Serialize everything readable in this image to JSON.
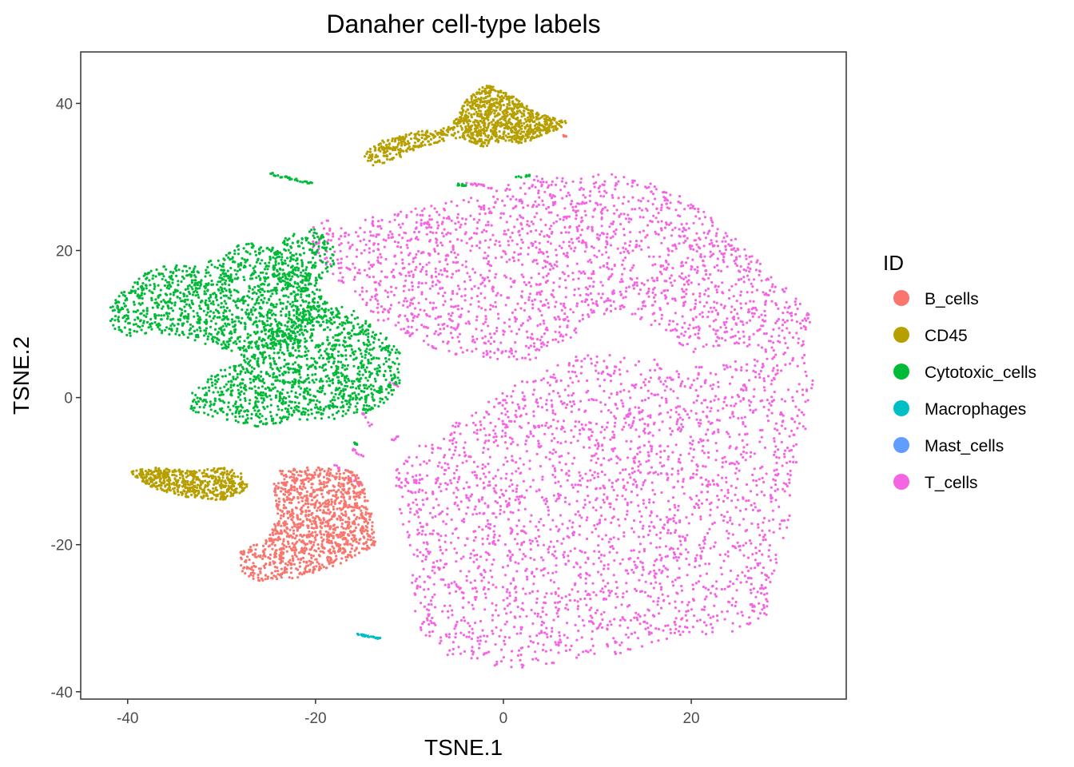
{
  "chart_data": {
    "type": "scatter",
    "title": "Danaher cell-type labels",
    "xlabel": "TSNE.1",
    "ylabel": "TSNE.2",
    "xlim": [
      -45,
      36.5
    ],
    "ylim": [
      -41,
      47
    ],
    "x_ticks": [
      -40,
      -20,
      0,
      20
    ],
    "y_ticks": [
      -40,
      -20,
      0,
      20,
      40
    ],
    "grid": false,
    "legend": {
      "title": "ID",
      "placement": "right",
      "entries": [
        {
          "name": "B_cells",
          "color": "#F8766D"
        },
        {
          "name": "CD45",
          "color": "#B79F00"
        },
        {
          "name": "Cytotoxic_cells",
          "color": "#00BA38"
        },
        {
          "name": "Macrophages",
          "color": "#00BFC4"
        },
        {
          "name": "Mast_cells",
          "color": "#619CFF"
        },
        {
          "name": "T_cells",
          "color": "#F564E3"
        }
      ]
    },
    "series": [
      {
        "name": "T_cells",
        "color": "#F564E3",
        "clusters": [
          {
            "type": "polygon",
            "n": 2600,
            "points": [
              [
                -10,
                -7
              ],
              [
                -7,
                -5
              ],
              [
                -2,
                -1
              ],
              [
                0,
                1
              ],
              [
                5,
                4
              ],
              [
                8,
                6
              ],
              [
                12,
                6
              ],
              [
                17,
                5
              ],
              [
                22,
                4
              ],
              [
                27,
                6
              ],
              [
                30,
                8
              ],
              [
                32,
                6
              ],
              [
                33,
                2
              ],
              [
                32,
                -6
              ],
              [
                31,
                -12
              ],
              [
                30,
                -20
              ],
              [
                29,
                -24
              ],
              [
                28,
                -30
              ],
              [
                24,
                -32
              ],
              [
                18,
                -33
              ],
              [
                12,
                -35
              ],
              [
                6,
                -36
              ],
              [
                1,
                -37
              ],
              [
                -3,
                -36
              ],
              [
                -6,
                -35
              ],
              [
                -9,
                -32
              ],
              [
                -10,
                -28
              ],
              [
                -10,
                -22
              ],
              [
                -11,
                -16
              ],
              [
                -12,
                -10
              ]
            ]
          },
          {
            "type": "polygon",
            "n": 2000,
            "points": [
              [
                -20,
                24
              ],
              [
                -13,
                25
              ],
              [
                -8,
                26
              ],
              [
                -2,
                28
              ],
              [
                3,
                30
              ],
              [
                8,
                31
              ],
              [
                14,
                30
              ],
              [
                18,
                28
              ],
              [
                22,
                25
              ],
              [
                26,
                20
              ],
              [
                30,
                15
              ],
              [
                33,
                11
              ],
              [
                32,
                7
              ],
              [
                28,
                6
              ],
              [
                24,
                7
              ],
              [
                20,
                6
              ],
              [
                17,
                9
              ],
              [
                12,
                12
              ],
              [
                9,
                10
              ],
              [
                6,
                7
              ],
              [
                3,
                5
              ],
              [
                -1,
                5
              ],
              [
                -6,
                6
              ],
              [
                -10,
                8
              ],
              [
                -13,
                10
              ],
              [
                -15,
                13
              ],
              [
                -17,
                15
              ],
              [
                -19,
                18
              ],
              [
                -21,
                20
              ]
            ]
          },
          {
            "type": "line",
            "n": 18,
            "from": [
              -4,
              29.2
            ],
            "to": [
              -1,
              28.5
            ],
            "jitter": 0.4
          },
          {
            "type": "line",
            "n": 8,
            "from": [
              -15,
              -2
            ],
            "to": [
              -14,
              -4
            ],
            "jitter": 0.3
          },
          {
            "type": "line",
            "n": 10,
            "from": [
              -16,
              -7
            ],
            "to": [
              -15,
              -8
            ],
            "jitter": 0.3
          },
          {
            "type": "line",
            "n": 12,
            "from": [
              -18,
              -9
            ],
            "to": [
              -15,
              -12
            ],
            "jitter": 0.4
          },
          {
            "type": "line",
            "n": 6,
            "from": [
              -12,
              -6
            ],
            "to": [
              -11,
              -5
            ],
            "jitter": 0.3
          },
          {
            "type": "line",
            "n": 5,
            "from": [
              -12,
              2
            ],
            "to": [
              -11,
              1.5
            ],
            "jitter": 0.2
          }
        ]
      },
      {
        "name": "Cytotoxic_cells",
        "color": "#00BA38",
        "clusters": [
          {
            "type": "polygon",
            "n": 1200,
            "points": [
              [
                -42,
                13
              ],
              [
                -42,
                10
              ],
              [
                -40,
                8
              ],
              [
                -37,
                9
              ],
              [
                -34,
                8
              ],
              [
                -31,
                7
              ],
              [
                -28,
                6
              ],
              [
                -24,
                7
              ],
              [
                -21,
                9
              ],
              [
                -19,
                13
              ],
              [
                -20,
                16
              ],
              [
                -22,
                17
              ],
              [
                -25,
                21
              ],
              [
                -28,
                21
              ],
              [
                -30,
                19
              ],
              [
                -33,
                18
              ],
              [
                -36,
                18
              ],
              [
                -38,
                17
              ],
              [
                -40,
                15
              ]
            ]
          },
          {
            "type": "polygon",
            "n": 1300,
            "points": [
              [
                -34,
                -1
              ],
              [
                -33,
                -2
              ],
              [
                -30,
                -3
              ],
              [
                -26,
                -4
              ],
              [
                -22,
                -3
              ],
              [
                -18,
                -3
              ],
              [
                -14,
                -2
              ],
              [
                -12,
                0
              ],
              [
                -11,
                2
              ],
              [
                -11,
                6
              ],
              [
                -13,
                9
              ],
              [
                -16,
                12
              ],
              [
                -19,
                13
              ],
              [
                -22,
                12
              ],
              [
                -25,
                9
              ],
              [
                -28,
                6
              ],
              [
                -31,
                3
              ],
              [
                -33,
                1
              ]
            ]
          },
          {
            "type": "polygon",
            "n": 220,
            "points": [
              [
                -25,
                19
              ],
              [
                -23,
                22
              ],
              [
                -20,
                23
              ],
              [
                -18,
                21
              ],
              [
                -18,
                18
              ],
              [
                -20,
                15
              ],
              [
                -22,
                14
              ],
              [
                -24,
                16
              ]
            ]
          },
          {
            "type": "line",
            "n": 28,
            "from": [
              -25,
              30.5
            ],
            "to": [
              -20,
              29
            ],
            "jitter": 0.35
          },
          {
            "type": "line",
            "n": 12,
            "from": [
              -5,
              29
            ],
            "to": [
              -3.5,
              28.8
            ],
            "jitter": 0.25
          },
          {
            "type": "line",
            "n": 8,
            "from": [
              1,
              29.8
            ],
            "to": [
              3,
              30.3
            ],
            "jitter": 0.25
          },
          {
            "type": "line",
            "n": 5,
            "from": [
              -16,
              -6
            ],
            "to": [
              -15.5,
              -6.5
            ],
            "jitter": 0.2
          }
        ]
      },
      {
        "name": "CD45",
        "color": "#B79F00",
        "clusters": [
          {
            "type": "polygon",
            "n": 900,
            "points": [
              [
                -5,
                38
              ],
              [
                -4,
                40.5
              ],
              [
                -2,
                42.5
              ],
              [
                0,
                42
              ],
              [
                2,
                40
              ],
              [
                4,
                38.5
              ],
              [
                7,
                37.5
              ],
              [
                6,
                36.5
              ],
              [
                4,
                35.5
              ],
              [
                2,
                34.5
              ],
              [
                0,
                35
              ],
              [
                -2,
                34
              ],
              [
                -4,
                35
              ],
              [
                -6,
                35.5
              ],
              [
                -7,
                36
              ]
            ]
          },
          {
            "type": "polygon",
            "n": 220,
            "points": [
              [
                -15,
                33
              ],
              [
                -13,
                35
              ],
              [
                -10,
                36
              ],
              [
                -7,
                36.5
              ],
              [
                -6,
                35
              ],
              [
                -9,
                34
              ],
              [
                -12,
                32
              ],
              [
                -14,
                31.5
              ]
            ]
          },
          {
            "type": "polygon",
            "n": 550,
            "points": [
              [
                -40,
                -10
              ],
              [
                -37,
                -9.5
              ],
              [
                -33,
                -10
              ],
              [
                -30,
                -9.5
              ],
              [
                -28,
                -10
              ],
              [
                -27,
                -12
              ],
              [
                -28,
                -13
              ],
              [
                -30,
                -14
              ],
              [
                -34,
                -13.5
              ],
              [
                -37,
                -12.5
              ],
              [
                -39,
                -11
              ]
            ]
          }
        ]
      },
      {
        "name": "B_cells",
        "color": "#F8766D",
        "clusters": [
          {
            "type": "polygon",
            "n": 1200,
            "points": [
              [
                -24,
                -10
              ],
              [
                -22,
                -9.5
              ],
              [
                -19,
                -9.5
              ],
              [
                -16,
                -10
              ],
              [
                -15,
                -11
              ],
              [
                -14,
                -16
              ],
              [
                -13.5,
                -20
              ],
              [
                -15,
                -21
              ],
              [
                -18,
                -23
              ],
              [
                -22,
                -24.5
              ],
              [
                -26,
                -25
              ],
              [
                -28,
                -24
              ],
              [
                -28,
                -21
              ],
              [
                -25,
                -19
              ],
              [
                -24,
                -16
              ],
              [
                -24.5,
                -12
              ]
            ]
          },
          {
            "type": "line",
            "n": 6,
            "from": [
              6.2,
              35.8
            ],
            "to": [
              6.8,
              35.3
            ],
            "jitter": 0.2
          }
        ]
      },
      {
        "name": "Macrophages",
        "color": "#00BFC4",
        "clusters": [
          {
            "type": "line",
            "n": 30,
            "from": [
              -15.5,
              -32.2
            ],
            "to": [
              -13,
              -32.8
            ],
            "jitter": 0.2
          }
        ]
      },
      {
        "name": "Mast_cells",
        "color": "#619CFF",
        "clusters": []
      }
    ]
  }
}
